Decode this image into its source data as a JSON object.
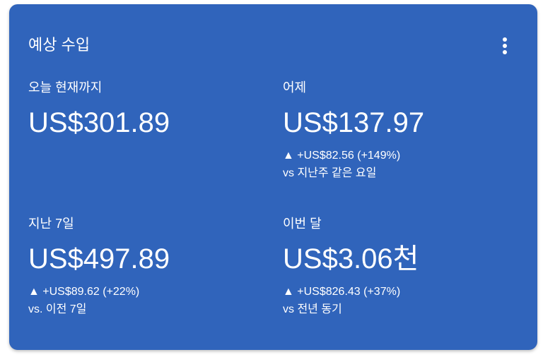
{
  "card": {
    "title": "예상 수입",
    "menu_icon": "more-vert-icon",
    "background_color": "#3064bb",
    "metrics": [
      {
        "label": "오늘 현재까지",
        "value": "US$301.89"
      },
      {
        "label": "어제",
        "value": "US$137.97",
        "change": "▲ +US$82.56 (+149%)",
        "comparison": "vs 지난주 같은 요일"
      },
      {
        "label": "지난 7일",
        "value": "US$497.89",
        "change": "▲ +US$89.62 (+22%)",
        "comparison": "vs. 이전 7일"
      },
      {
        "label": "이번 달",
        "value": "US$3.06천",
        "change": "▲ +US$826.43 (+37%)",
        "comparison": "vs 전년 동기"
      }
    ]
  }
}
